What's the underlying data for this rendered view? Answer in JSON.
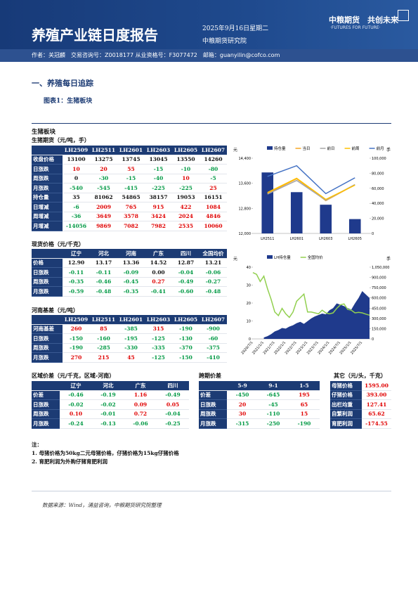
{
  "header": {
    "title": "养殖产业链日度报告",
    "date": "2025年9月16日星期二",
    "org": "中粮期货研究院",
    "logo": "中粮期货　共创未来",
    "logo_sub": "·FUTURES FOR FUTURE·",
    "authors": "作者：关冠麟　交易咨询号：Z0018177 从业资格号：F3077472　邮箱：guanyilin@cofco.com"
  },
  "section": "一、养殖每日追踪",
  "figure": "图表1：生猪板块",
  "block": "生猪板块",
  "tables": {
    "futures": {
      "title": "生猪期货（元/吨，手）",
      "headers": [
        "LH2509",
        "LH2511",
        "LH2601",
        "LH2603",
        "LH2605",
        "LH2607"
      ],
      "rows": [
        {
          "label": "收盘价格",
          "values": [
            "13100",
            "13275",
            "13745",
            "13045",
            "13550",
            "14260"
          ]
        },
        {
          "label": "日涨跌",
          "values": [
            "10",
            "20",
            "55",
            "-15",
            "-10",
            "-80"
          ]
        },
        {
          "label": "周涨跌",
          "values": [
            "0",
            "-30",
            "-15",
            "-40",
            "10",
            "-5"
          ]
        },
        {
          "label": "月涨跌",
          "values": [
            "-540",
            "-545",
            "-415",
            "-225",
            "-225",
            "25"
          ]
        },
        {
          "label": "持仓量",
          "values": [
            "35",
            "81062",
            "54865",
            "38157",
            "19053",
            "16151"
          ]
        },
        {
          "label": "日增减",
          "values": [
            "-6",
            "2009",
            "765",
            "915",
            "422",
            "1084"
          ]
        },
        {
          "label": "周增减",
          "values": [
            "-36",
            "3649",
            "3578",
            "3424",
            "2024",
            "4846"
          ]
        },
        {
          "label": "月增减",
          "values": [
            "-14056",
            "9869",
            "7082",
            "7982",
            "2535",
            "10060"
          ]
        }
      ]
    },
    "spot": {
      "title": "现货价格（元/千克）",
      "headers": [
        "辽宁",
        "河北",
        "河南",
        "广东",
        "四川",
        "全国均价"
      ],
      "rows": [
        {
          "label": "价格",
          "values": [
            "12.90",
            "13.17",
            "13.36",
            "14.52",
            "12.87",
            "13.21"
          ]
        },
        {
          "label": "日涨跌",
          "values": [
            "-0.11",
            "-0.11",
            "-0.09",
            "0.00",
            "-0.04",
            "-0.06"
          ]
        },
        {
          "label": "周涨跌",
          "values": [
            "-0.35",
            "-0.46",
            "-0.45",
            "0.27",
            "-0.49",
            "-0.27"
          ]
        },
        {
          "label": "月涨跌",
          "values": [
            "-0.59",
            "-0.48",
            "-0.35",
            "-0.41",
            "-0.60",
            "-0.48"
          ]
        }
      ]
    },
    "basis": {
      "title": "河南基差（元/吨）",
      "headers": [
        "LH2509",
        "LH2511",
        "LH2601",
        "LH2603",
        "LH2605",
        "LH2607"
      ],
      "rows": [
        {
          "label": "河南基差",
          "values": [
            "260",
            "85",
            "-385",
            "315",
            "-190",
            "-900"
          ]
        },
        {
          "label": "日涨跌",
          "values": [
            "-150",
            "-160",
            "-195",
            "-125",
            "-130",
            "-60"
          ]
        },
        {
          "label": "周涨跌",
          "values": [
            "-190",
            "-285",
            "-330",
            "-335",
            "-370",
            "-375"
          ]
        },
        {
          "label": "月涨跌",
          "values": [
            "270",
            "215",
            "45",
            "-125",
            "-150",
            "-410"
          ]
        }
      ]
    },
    "region": {
      "title": "区域价差（元/千克，区域-河南）",
      "headers": [
        "辽宁",
        "河北",
        "广东",
        "四川"
      ],
      "rows": [
        {
          "label": "价差",
          "values": [
            "-0.46",
            "-0.19",
            "1.16",
            "-0.49"
          ]
        },
        {
          "label": "日涨跌",
          "values": [
            "-0.02",
            "-0.02",
            "0.09",
            "0.05"
          ]
        },
        {
          "label": "周涨跌",
          "values": [
            "0.10",
            "-0.01",
            "0.72",
            "-0.04"
          ]
        },
        {
          "label": "月涨跌",
          "values": [
            "-0.24",
            "-0.13",
            "-0.06",
            "-0.25"
          ]
        }
      ]
    },
    "spread": {
      "title": "跨期价差",
      "headers": [
        "5-9",
        "9-1",
        "1-5"
      ],
      "rows": [
        {
          "label": "价差",
          "values": [
            "-450",
            "-645",
            "195"
          ]
        },
        {
          "label": "日涨跌",
          "values": [
            "20",
            "-45",
            "65"
          ]
        },
        {
          "label": "周涨跌",
          "values": [
            "30",
            "-110",
            "15"
          ]
        },
        {
          "label": "月涨跌",
          "values": [
            "-315",
            "-250",
            "-190"
          ]
        }
      ]
    },
    "other": {
      "title": "其它（元/头，千克）",
      "rows": [
        {
          "label": "母猪价格",
          "values": [
            "1595.00"
          ]
        },
        {
          "label": "仔猪价格",
          "values": [
            "393.00"
          ]
        },
        {
          "label": "出栏均重",
          "values": [
            "127.41"
          ]
        },
        {
          "label": "自繁利润",
          "values": [
            "65.62"
          ]
        },
        {
          "label": "育肥利润",
          "values": [
            "-174.55"
          ]
        }
      ]
    }
  },
  "notes": [
    "注：",
    "1. 母猪价格为50kg二元母猪价格，仔猪价格为15kg仔猪价格",
    "2. 育肥利润为外购仔猪育肥利润"
  ],
  "source": "数据来源：Wind，涌益咨询，中粮期货研究院整理",
  "chart_data": [
    {
      "type": "combo",
      "y_label": "元",
      "y2_label": "手",
      "categories": [
        "LH2511",
        "LH2601",
        "LH2603",
        "LH2605"
      ],
      "ylim": [
        12000,
        14400
      ],
      "yticks": [
        {
          "value": 12000,
          "label": "12,000"
        },
        {
          "value": 12800,
          "label": "12,800"
        },
        {
          "value": 13600,
          "label": "13,600"
        },
        {
          "value": 14400,
          "label": "14,400"
        }
      ],
      "y2lim": [
        0,
        100000
      ],
      "y2ticks": [
        0,
        {
          "value": 20000,
          "label": "20,000"
        },
        {
          "value": 40000,
          "label": "40,000"
        },
        {
          "value": 60000,
          "label": "60,000"
        },
        {
          "value": 80000,
          "label": "80,000"
        },
        {
          "value": 100000,
          "label": "100,000"
        }
      ],
      "series": [
        {
          "name": "持仓量",
          "kind": "bar",
          "axis": "y2",
          "color": "#1f3a8c",
          "values": [
            81062,
            54865,
            38157,
            19053
          ]
        },
        {
          "name": "当日",
          "kind": "line",
          "color": "#f5a623",
          "values": [
            13275,
            13745,
            13045,
            13550
          ]
        },
        {
          "name": "前日",
          "kind": "line",
          "color": "#a6a6a6",
          "values": [
            13255,
            13690,
            13060,
            13560
          ]
        },
        {
          "name": "前周",
          "kind": "line",
          "color": "#ffc000",
          "values": [
            13305,
            13760,
            13085,
            13540
          ]
        },
        {
          "name": "前月",
          "kind": "line",
          "color": "#4472c4",
          "values": [
            13820,
            14160,
            13270,
            13775
          ]
        }
      ]
    },
    {
      "type": "combo",
      "y_label": "元",
      "y2_label": "手",
      "categories": [
        "2020/7/1",
        null,
        null,
        "2021/1/1",
        null,
        null,
        "2021/7/1",
        null,
        null,
        "2022/1/1",
        null,
        null,
        "2022/7/1",
        null,
        null,
        "2023/1/1",
        null,
        null,
        "2023/7/1",
        null,
        null,
        "2024/1/1",
        null,
        null,
        "2024/7/1",
        null,
        null,
        "2025/1/1",
        null,
        null,
        "2025/7/1",
        null,
        null
      ],
      "ylim": [
        0,
        40
      ],
      "yticks": [
        0,
        10,
        20,
        30,
        40
      ],
      "y2lim": [
        0,
        1050000
      ],
      "y2ticks": [
        0,
        {
          "value": 150000,
          "label": "150,000"
        },
        {
          "value": 300000,
          "label": "300,000"
        },
        {
          "value": 450000,
          "label": "450,000"
        },
        {
          "value": 600000,
          "label": "600,000"
        },
        {
          "value": 750000,
          "label": "750,000"
        },
        {
          "value": 900000,
          "label": "900,000"
        },
        {
          "value": 1050000,
          "label": "1,050,000"
        }
      ],
      "series": [
        {
          "name": "LH持仓量",
          "kind": "area",
          "axis": "y2",
          "color": "#1f3a8c",
          "values": [
            null,
            null,
            null,
            20000,
            40000,
            70000,
            110000,
            130000,
            160000,
            150000,
            180000,
            200000,
            230000,
            250000,
            220000,
            260000,
            300000,
            330000,
            350000,
            370000,
            360000,
            420000,
            450000,
            520000,
            500000,
            480000,
            450000,
            430000,
            520000,
            600000,
            700000,
            650000,
            600000
          ]
        },
        {
          "name": "全国均价",
          "kind": "line",
          "color": "#92d050",
          "values": [
            37,
            36,
            32,
            35,
            28,
            22,
            15,
            13,
            17,
            14,
            12,
            15,
            21,
            23,
            25,
            15,
            15,
            14.5,
            14,
            16,
            14.5,
            14,
            14.5,
            17,
            19,
            19.5,
            16.5,
            16,
            14.5,
            14.8,
            14.5,
            13.8,
            13.2
          ]
        }
      ]
    }
  ]
}
